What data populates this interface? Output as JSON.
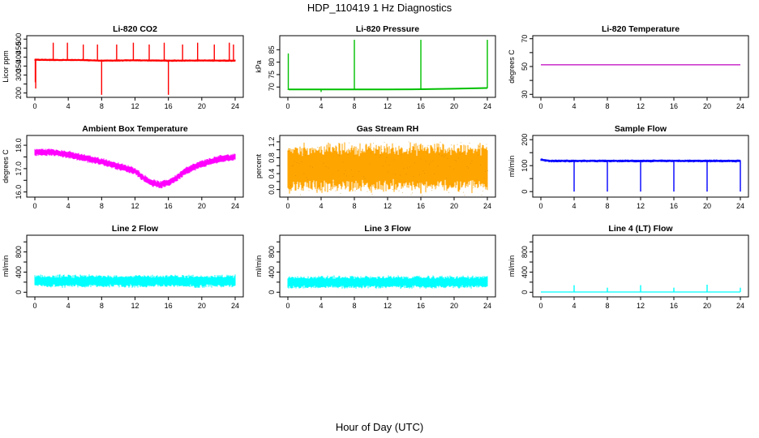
{
  "figure": {
    "title": "HDP_110419  1 Hz Diagnostics",
    "xlabel": "Hour of Day (UTC)"
  },
  "chart_data": [
    {
      "type": "line",
      "title": "Li-820 CO2",
      "ylabel": "Licor ppm",
      "color": "#ff0000",
      "xlim": [
        0,
        24
      ],
      "ylim": [
        185,
        510
      ],
      "xticks": [
        0,
        4,
        8,
        12,
        16,
        20,
        24
      ],
      "yticks": [
        200,
        250,
        300,
        350,
        400,
        450,
        500
      ],
      "yticklabels": [
        "200",
        "",
        "300",
        "350",
        "400",
        "450",
        "500"
      ],
      "series": [
        {
          "baseline": [
            [
              0,
              385
            ],
            [
              6,
              383
            ],
            [
              8,
              380
            ],
            [
              12,
              382
            ],
            [
              16,
              380
            ],
            [
              20,
              381
            ],
            [
              24,
              380
            ]
          ],
          "band": 12,
          "spikes": [
            [
              0.05,
              260
            ],
            [
              0.1,
              225
            ],
            [
              2.2,
              480
            ],
            [
              3.9,
              480
            ],
            [
              5.8,
              470
            ],
            [
              7.5,
              470
            ],
            [
              8.0,
              190
            ],
            [
              9.8,
              470
            ],
            [
              11.8,
              480
            ],
            [
              13.7,
              470
            ],
            [
              15.5,
              480
            ],
            [
              16.0,
              190
            ],
            [
              17.7,
              470
            ],
            [
              19.5,
              480
            ],
            [
              21.5,
              470
            ],
            [
              23.3,
              480
            ],
            [
              23.8,
              470
            ]
          ]
        }
      ]
    },
    {
      "type": "line",
      "title": "Li-820 Pressure",
      "ylabel": "kPa",
      "color": "#00c000",
      "xlim": [
        0,
        24
      ],
      "ylim": [
        66.5,
        90
      ],
      "xticks": [
        0,
        4,
        8,
        12,
        16,
        20,
        24
      ],
      "yticks": [
        70,
        75,
        80,
        85
      ],
      "yticklabels": [
        "70",
        "75",
        "80",
        "85"
      ],
      "series": [
        {
          "baseline": [
            [
              0.1,
              69.0
            ],
            [
              4,
              69.0
            ],
            [
              8,
              69.0
            ],
            [
              12,
              69.0
            ],
            [
              16,
              69.1
            ],
            [
              20,
              69.3
            ],
            [
              24,
              69.6
            ]
          ],
          "band": 0.3,
          "spikes": [
            [
              0.05,
              83.5
            ],
            [
              4,
              68.0
            ],
            [
              8,
              89
            ],
            [
              16,
              89
            ],
            [
              24,
              89
            ]
          ]
        }
      ]
    },
    {
      "type": "line",
      "title": "Li-820 Temperature",
      "ylabel": "degrees C",
      "color": "#c000c0",
      "xlim": [
        0,
        24
      ],
      "ylim": [
        29,
        71
      ],
      "xticks": [
        0,
        4,
        8,
        12,
        16,
        20,
        24
      ],
      "yticks": [
        30,
        40,
        50,
        60,
        70
      ],
      "yticklabels": [
        "30",
        "",
        "50",
        "",
        "70"
      ],
      "series": [
        {
          "baseline": [
            [
              0,
              51.2
            ],
            [
              24,
              51.2
            ]
          ],
          "band": 0,
          "spikes": []
        }
      ]
    },
    {
      "type": "line",
      "title": "Ambient Box Temperature",
      "ylabel": "degrees C",
      "color": "#ff00ff",
      "xlim": [
        0,
        24
      ],
      "ylim": [
        15.85,
        18.35
      ],
      "xticks": [
        0,
        4,
        8,
        12,
        16,
        20,
        24
      ],
      "yticks": [
        16.0,
        16.5,
        17.0,
        17.5,
        18.0
      ],
      "yticklabels": [
        "16.0",
        "",
        "17.0",
        "",
        "18.0"
      ],
      "series": [
        {
          "baseline": [
            [
              0,
              17.7
            ],
            [
              2,
              17.7
            ],
            [
              4,
              17.6
            ],
            [
              6,
              17.45
            ],
            [
              8,
              17.3
            ],
            [
              10,
              17.1
            ],
            [
              12,
              16.9
            ],
            [
              13,
              16.6
            ],
            [
              14,
              16.4
            ],
            [
              15,
              16.3
            ],
            [
              16,
              16.4
            ],
            [
              17,
              16.6
            ],
            [
              18,
              16.9
            ],
            [
              20,
              17.2
            ],
            [
              22,
              17.4
            ],
            [
              24,
              17.5
            ]
          ],
          "band": 0.3,
          "spikes": []
        }
      ]
    },
    {
      "type": "line",
      "title": "Gas Stream RH",
      "ylabel": "percent",
      "color": "#ffa500",
      "xlim": [
        0,
        24
      ],
      "ylim": [
        -0.15,
        1.32
      ],
      "xticks": [
        0,
        4,
        8,
        12,
        16,
        20,
        24
      ],
      "yticks": [
        0.0,
        0.2,
        0.4,
        0.6,
        0.8,
        1.0,
        1.2
      ],
      "yticklabels": [
        "0.0",
        "",
        "0.4",
        "",
        "0.8",
        "",
        "1.2"
      ],
      "series": [
        {
          "baseline": [
            [
              0,
              0.55
            ],
            [
              24,
              0.55
            ]
          ],
          "band": 1.1,
          "spikes": [
            [
              16,
              -0.1
            ]
          ]
        }
      ]
    },
    {
      "type": "line",
      "title": "Sample Flow",
      "ylabel": "ml/min",
      "color": "#0000ff",
      "xlim": [
        0,
        24
      ],
      "ylim": [
        -15,
        210
      ],
      "xticks": [
        0,
        4,
        8,
        12,
        16,
        20,
        24
      ],
      "yticks": [
        0,
        50,
        100,
        150,
        200
      ],
      "yticklabels": [
        "0",
        "",
        "100",
        "",
        "200"
      ],
      "series": [
        {
          "baseline": [
            [
              0,
              123
            ],
            [
              1,
              118
            ],
            [
              4,
              118
            ],
            [
              8,
              118
            ],
            [
              12,
              118
            ],
            [
              16,
              118
            ],
            [
              20,
              118
            ],
            [
              24,
              118
            ]
          ],
          "band": 10,
          "spikes": [
            [
              4,
              0
            ],
            [
              8,
              0
            ],
            [
              12,
              0
            ],
            [
              16,
              0
            ],
            [
              20,
              0
            ],
            [
              24,
              0
            ]
          ]
        }
      ]
    },
    {
      "type": "line",
      "title": "Line 2 Flow",
      "ylabel": "ml/min",
      "color": "#00ffff",
      "xlim": [
        0,
        24
      ],
      "ylim": [
        -60,
        1100
      ],
      "xticks": [
        0,
        4,
        8,
        12,
        16,
        20,
        24
      ],
      "yticks": [
        0,
        200,
        400,
        600,
        800,
        1000
      ],
      "yticklabels": [
        "0",
        "",
        "400",
        "",
        "800",
        ""
      ],
      "series": [
        {
          "baseline": [
            [
              0,
              220
            ],
            [
              24,
              220
            ]
          ],
          "band": 230,
          "spikes": []
        }
      ]
    },
    {
      "type": "line",
      "title": "Line 3 Flow",
      "ylabel": "ml/min",
      "color": "#00ffff",
      "xlim": [
        0,
        24
      ],
      "ylim": [
        -60,
        1100
      ],
      "xticks": [
        0,
        4,
        8,
        12,
        16,
        20,
        24
      ],
      "yticks": [
        0,
        200,
        400,
        600,
        800,
        1000
      ],
      "yticklabels": [
        "0",
        "",
        "400",
        "",
        "800",
        ""
      ],
      "series": [
        {
          "baseline": [
            [
              0,
              200
            ],
            [
              24,
              200
            ]
          ],
          "band": 230,
          "spikes": []
        }
      ]
    },
    {
      "type": "line",
      "title": "Line 4 (LT) Flow",
      "ylabel": "ml/min",
      "color": "#00ffff",
      "xlim": [
        0,
        24
      ],
      "ylim": [
        -60,
        1100
      ],
      "xticks": [
        0,
        4,
        8,
        12,
        16,
        20,
        24
      ],
      "yticks": [
        0,
        200,
        400,
        600,
        800,
        1000
      ],
      "yticklabels": [
        "0",
        "",
        "400",
        "",
        "800",
        ""
      ],
      "series": [
        {
          "baseline": [
            [
              0,
              5
            ],
            [
              24,
              5
            ]
          ],
          "band": 0,
          "spikes": [
            [
              4,
              140
            ],
            [
              8,
              90
            ],
            [
              12,
              140
            ],
            [
              16,
              90
            ],
            [
              20,
              150
            ],
            [
              24,
              90
            ]
          ]
        }
      ]
    }
  ]
}
